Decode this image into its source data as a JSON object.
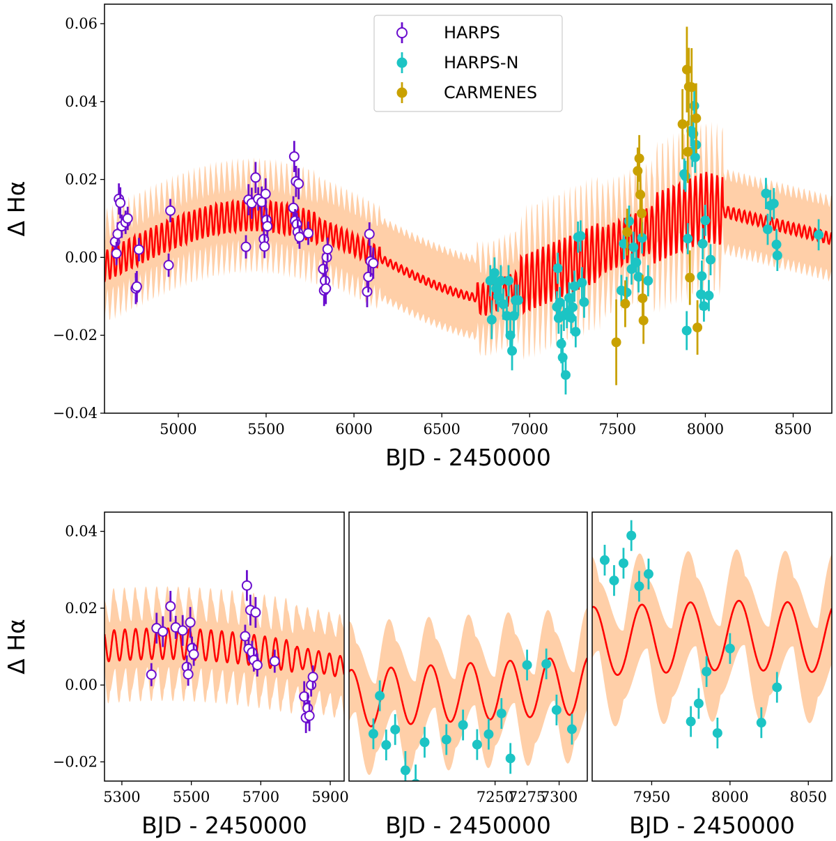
{
  "colors": {
    "harps": "#6a0dce",
    "harpsn": "#1cc4c4",
    "carmenes": "#c9a100",
    "model": "#ff0000",
    "band": "#ffcfa8"
  },
  "chart_data": [
    {
      "id": "main",
      "type": "scatter",
      "title": "",
      "xlabel": "BJD - 2450000",
      "ylabel": "Δ Hα",
      "xlim": [
        4580,
        8720
      ],
      "ylim": [
        -0.04,
        0.065
      ],
      "xticks": [
        5000,
        5500,
        6000,
        6500,
        7000,
        7500,
        8000,
        8500
      ],
      "xtick_labels": [
        "5000",
        "5500",
        "6000",
        "6500",
        "7000",
        "7500",
        "8000",
        "8500"
      ],
      "yticks": [
        -0.04,
        -0.02,
        0.0,
        0.02,
        0.04,
        0.06
      ],
      "ytick_labels": [
        "−0.04",
        "−0.02",
        "0.00",
        "0.02",
        "0.04",
        "0.06"
      ],
      "legend": {
        "position": "top-center",
        "entries": [
          {
            "label": "HARPS",
            "series": "harps"
          },
          {
            "label": "HARPS-N",
            "series": "harpsn"
          },
          {
            "label": "CARMENES",
            "series": "carmenes"
          }
        ]
      },
      "model": {
        "name": "GP model",
        "band": "1-sigma band"
      },
      "series": [
        {
          "name": "HARPS",
          "key": "harps",
          "marker": "open-circle",
          "points": [
            [
              4640,
              0.004,
              0.003
            ],
            [
              4648,
              0.001,
              0.003
            ],
            [
              4655,
              0.006,
              0.003
            ],
            [
              4662,
              0.015,
              0.004
            ],
            [
              4670,
              0.014,
              0.004
            ],
            [
              4678,
              0.008,
              0.003
            ],
            [
              4700,
              0.009,
              0.003
            ],
            [
              4712,
              0.01,
              0.003
            ],
            [
              4758,
              -0.008,
              0.004
            ],
            [
              4764,
              -0.0075,
              0.004
            ],
            [
              4776,
              0.002,
              0.003
            ],
            [
              4945,
              -0.002,
              0.003
            ],
            [
              4955,
              0.012,
              0.003
            ],
            [
              5385,
              0.0027,
              0.003
            ],
            [
              5400,
              0.0148,
              0.004
            ],
            [
              5418,
              0.0139,
              0.004
            ],
            [
              5440,
              0.0205,
              0.004
            ],
            [
              5455,
              0.015,
              0.003
            ],
            [
              5475,
              0.0142,
              0.004
            ],
            [
              5487,
              0.0047,
              0.003
            ],
            [
              5491,
              0.0028,
              0.003
            ],
            [
              5497,
              0.0163,
              0.004
            ],
            [
              5502,
              0.0096,
              0.003
            ],
            [
              5507,
              0.008,
              0.003
            ],
            [
              5655,
              0.0127,
              0.003
            ],
            [
              5660,
              0.0259,
              0.004
            ],
            [
              5665,
              0.0094,
              0.003
            ],
            [
              5670,
              0.0195,
              0.004
            ],
            [
              5675,
              0.0085,
              0.003
            ],
            [
              5680,
              0.0065,
              0.003
            ],
            [
              5685,
              0.0189,
              0.004
            ],
            [
              5690,
              0.0052,
              0.003
            ],
            [
              5740,
              0.0062,
              0.003
            ],
            [
              5825,
              -0.003,
              0.004
            ],
            [
              5830,
              -0.0085,
              0.004
            ],
            [
              5835,
              -0.006,
              0.004
            ],
            [
              5840,
              -0.008,
              0.004
            ],
            [
              5845,
              0.0,
              0.003
            ],
            [
              5850,
              0.0021,
              0.003
            ],
            [
              6075,
              -0.0088,
              0.004
            ],
            [
              6082,
              -0.005,
              0.004
            ],
            [
              6088,
              0.006,
              0.003
            ],
            [
              6095,
              -0.001,
              0.004
            ],
            [
              6110,
              -0.0015,
              0.004
            ]
          ]
        },
        {
          "name": "HARPS-N",
          "key": "harpsn",
          "marker": "filled-circle",
          "points": [
            [
              6776,
              -0.006,
              0.004
            ],
            [
              6784,
              -0.016,
              0.005
            ],
            [
              6800,
              -0.004,
              0.004
            ],
            [
              6810,
              -0.008,
              0.004
            ],
            [
              6820,
              -0.01,
              0.004
            ],
            [
              6836,
              -0.006,
              0.004
            ],
            [
              6850,
              -0.012,
              0.004
            ],
            [
              6870,
              -0.015,
              0.005
            ],
            [
              6880,
              -0.006,
              0.004
            ],
            [
              6890,
              -0.02,
              0.005
            ],
            [
              6900,
              -0.024,
              0.005
            ],
            [
              6910,
              -0.015,
              0.005
            ],
            [
              6920,
              -0.011,
              0.004
            ],
            [
              6935,
              -0.011,
              0.004
            ],
            [
              7155,
              -0.0127,
              0.004
            ],
            [
              7160,
              -0.0028,
              0.004
            ],
            [
              7165,
              -0.0156,
              0.004
            ],
            [
              7172,
              -0.0116,
              0.004
            ],
            [
              7180,
              -0.0222,
              0.005
            ],
            [
              7188,
              -0.0257,
              0.005
            ],
            [
              7195,
              -0.0149,
              0.004
            ],
            [
              7205,
              -0.0302,
              0.005
            ],
            [
              7212,
              -0.0142,
              0.004
            ],
            [
              7225,
              -0.0104,
              0.004
            ],
            [
              7236,
              -0.0155,
              0.004
            ],
            [
              7245,
              -0.0128,
              0.004
            ],
            [
              7255,
              -0.0074,
              0.004
            ],
            [
              7262,
              -0.0191,
              0.004
            ],
            [
              7275,
              0.0052,
              0.004
            ],
            [
              7290,
              0.0055,
              0.004
            ],
            [
              7298,
              -0.0065,
              0.004
            ],
            [
              7310,
              -0.0115,
              0.004
            ],
            [
              7522,
              -0.0085,
              0.004
            ],
            [
              7536,
              0.0035,
              0.004
            ],
            [
              7552,
              -0.009,
              0.004
            ],
            [
              7566,
              0.0093,
              0.004
            ],
            [
              7580,
              -0.003,
              0.004
            ],
            [
              7591,
              0.0026,
              0.004
            ],
            [
              7607,
              -0.0013,
              0.004
            ],
            [
              7620,
              -0.005,
              0.004
            ],
            [
              7640,
              0.005,
              0.004
            ],
            [
              7674,
              -0.006,
              0.004
            ],
            [
              7880,
              0.0214,
              0.004
            ],
            [
              7887,
              0.0208,
              0.004
            ],
            [
              7894,
              -0.0188,
              0.005
            ],
            [
              7900,
              0.0048,
              0.004
            ],
            [
              7920,
              0.0325,
              0.004
            ],
            [
              7926,
              0.0272,
              0.004
            ],
            [
              7932,
              0.0317,
              0.004
            ],
            [
              7937,
              0.0389,
              0.004
            ],
            [
              7942,
              0.0257,
              0.004
            ],
            [
              7948,
              0.0289,
              0.004
            ],
            [
              7975,
              -0.0095,
              0.004
            ],
            [
              7980,
              -0.0048,
              0.004
            ],
            [
              7985,
              0.0035,
              0.004
            ],
            [
              7992,
              -0.0125,
              0.004
            ],
            [
              8000,
              0.0095,
              0.004
            ],
            [
              8020,
              -0.0098,
              0.004
            ],
            [
              8030,
              -0.0006,
              0.004
            ],
            [
              8345,
              0.0164,
              0.004
            ],
            [
              8355,
              0.0072,
              0.004
            ],
            [
              8370,
              0.0133,
              0.004
            ],
            [
              8390,
              0.0138,
              0.004
            ],
            [
              8405,
              0.0033,
              0.004
            ],
            [
              8410,
              0.0005,
              0.004
            ],
            [
              8645,
              0.0058,
              0.004
            ]
          ]
        },
        {
          "name": "CARMENES",
          "key": "carmenes",
          "marker": "filled-circle",
          "points": [
            [
              7493,
              -0.0218,
              0.011
            ],
            [
              7544,
              -0.0119,
              0.006
            ],
            [
              7555,
              0.0065,
              0.006
            ],
            [
              7615,
              0.0222,
              0.006
            ],
            [
              7624,
              0.0254,
              0.006
            ],
            [
              7630,
              0.0161,
              0.006
            ],
            [
              7638,
              0.0113,
              0.006
            ],
            [
              7643,
              -0.0105,
              0.006
            ],
            [
              7648,
              -0.0162,
              0.006
            ],
            [
              7870,
              0.0342,
              0.009
            ],
            [
              7895,
              0.0482,
              0.011
            ],
            [
              7900,
              0.0271,
              0.008
            ],
            [
              7906,
              0.0438,
              0.01
            ],
            [
              7912,
              -0.0052,
              0.007
            ],
            [
              7922,
              0.0437,
              0.01
            ],
            [
              7948,
              0.0357,
              0.009
            ],
            [
              7955,
              -0.018,
              0.007
            ]
          ]
        }
      ]
    },
    {
      "id": "zoom1",
      "type": "scatter",
      "xlabel": "BJD - 2450000",
      "ylabel": "Δ Hα",
      "xlim": [
        5250,
        5940
      ],
      "ylim": [
        -0.025,
        0.045
      ],
      "xticks": [
        5300,
        5500,
        5700,
        5900
      ],
      "xtick_labels": [
        "5300",
        "5500",
        "5700",
        "5900"
      ],
      "yticks": [
        -0.02,
        0.0,
        0.02,
        0.04
      ],
      "ytick_labels": [
        "−0.02",
        "0.00",
        "0.02",
        "0.04"
      ],
      "series_ref": "harps"
    },
    {
      "id": "zoom2",
      "type": "scatter",
      "xlabel": "BJD - 2450000",
      "ylabel": "",
      "xlim": [
        7136,
        7322
      ],
      "ylim": [
        -0.025,
        0.045
      ],
      "xticks": [
        7250,
        7275,
        7300
      ],
      "xtick_labels": [
        "7250",
        "7275",
        "7300"
      ],
      "series_ref": "harpsn"
    },
    {
      "id": "zoom3",
      "type": "scatter",
      "xlabel": "BJD - 2450000",
      "ylabel": "",
      "xlim": [
        7912,
        8065
      ],
      "ylim": [
        -0.025,
        0.045
      ],
      "xticks": [
        7950,
        8000,
        8050
      ],
      "xtick_labels": [
        "7950",
        "8000",
        "8050"
      ],
      "series_ref": "harpsn"
    }
  ]
}
